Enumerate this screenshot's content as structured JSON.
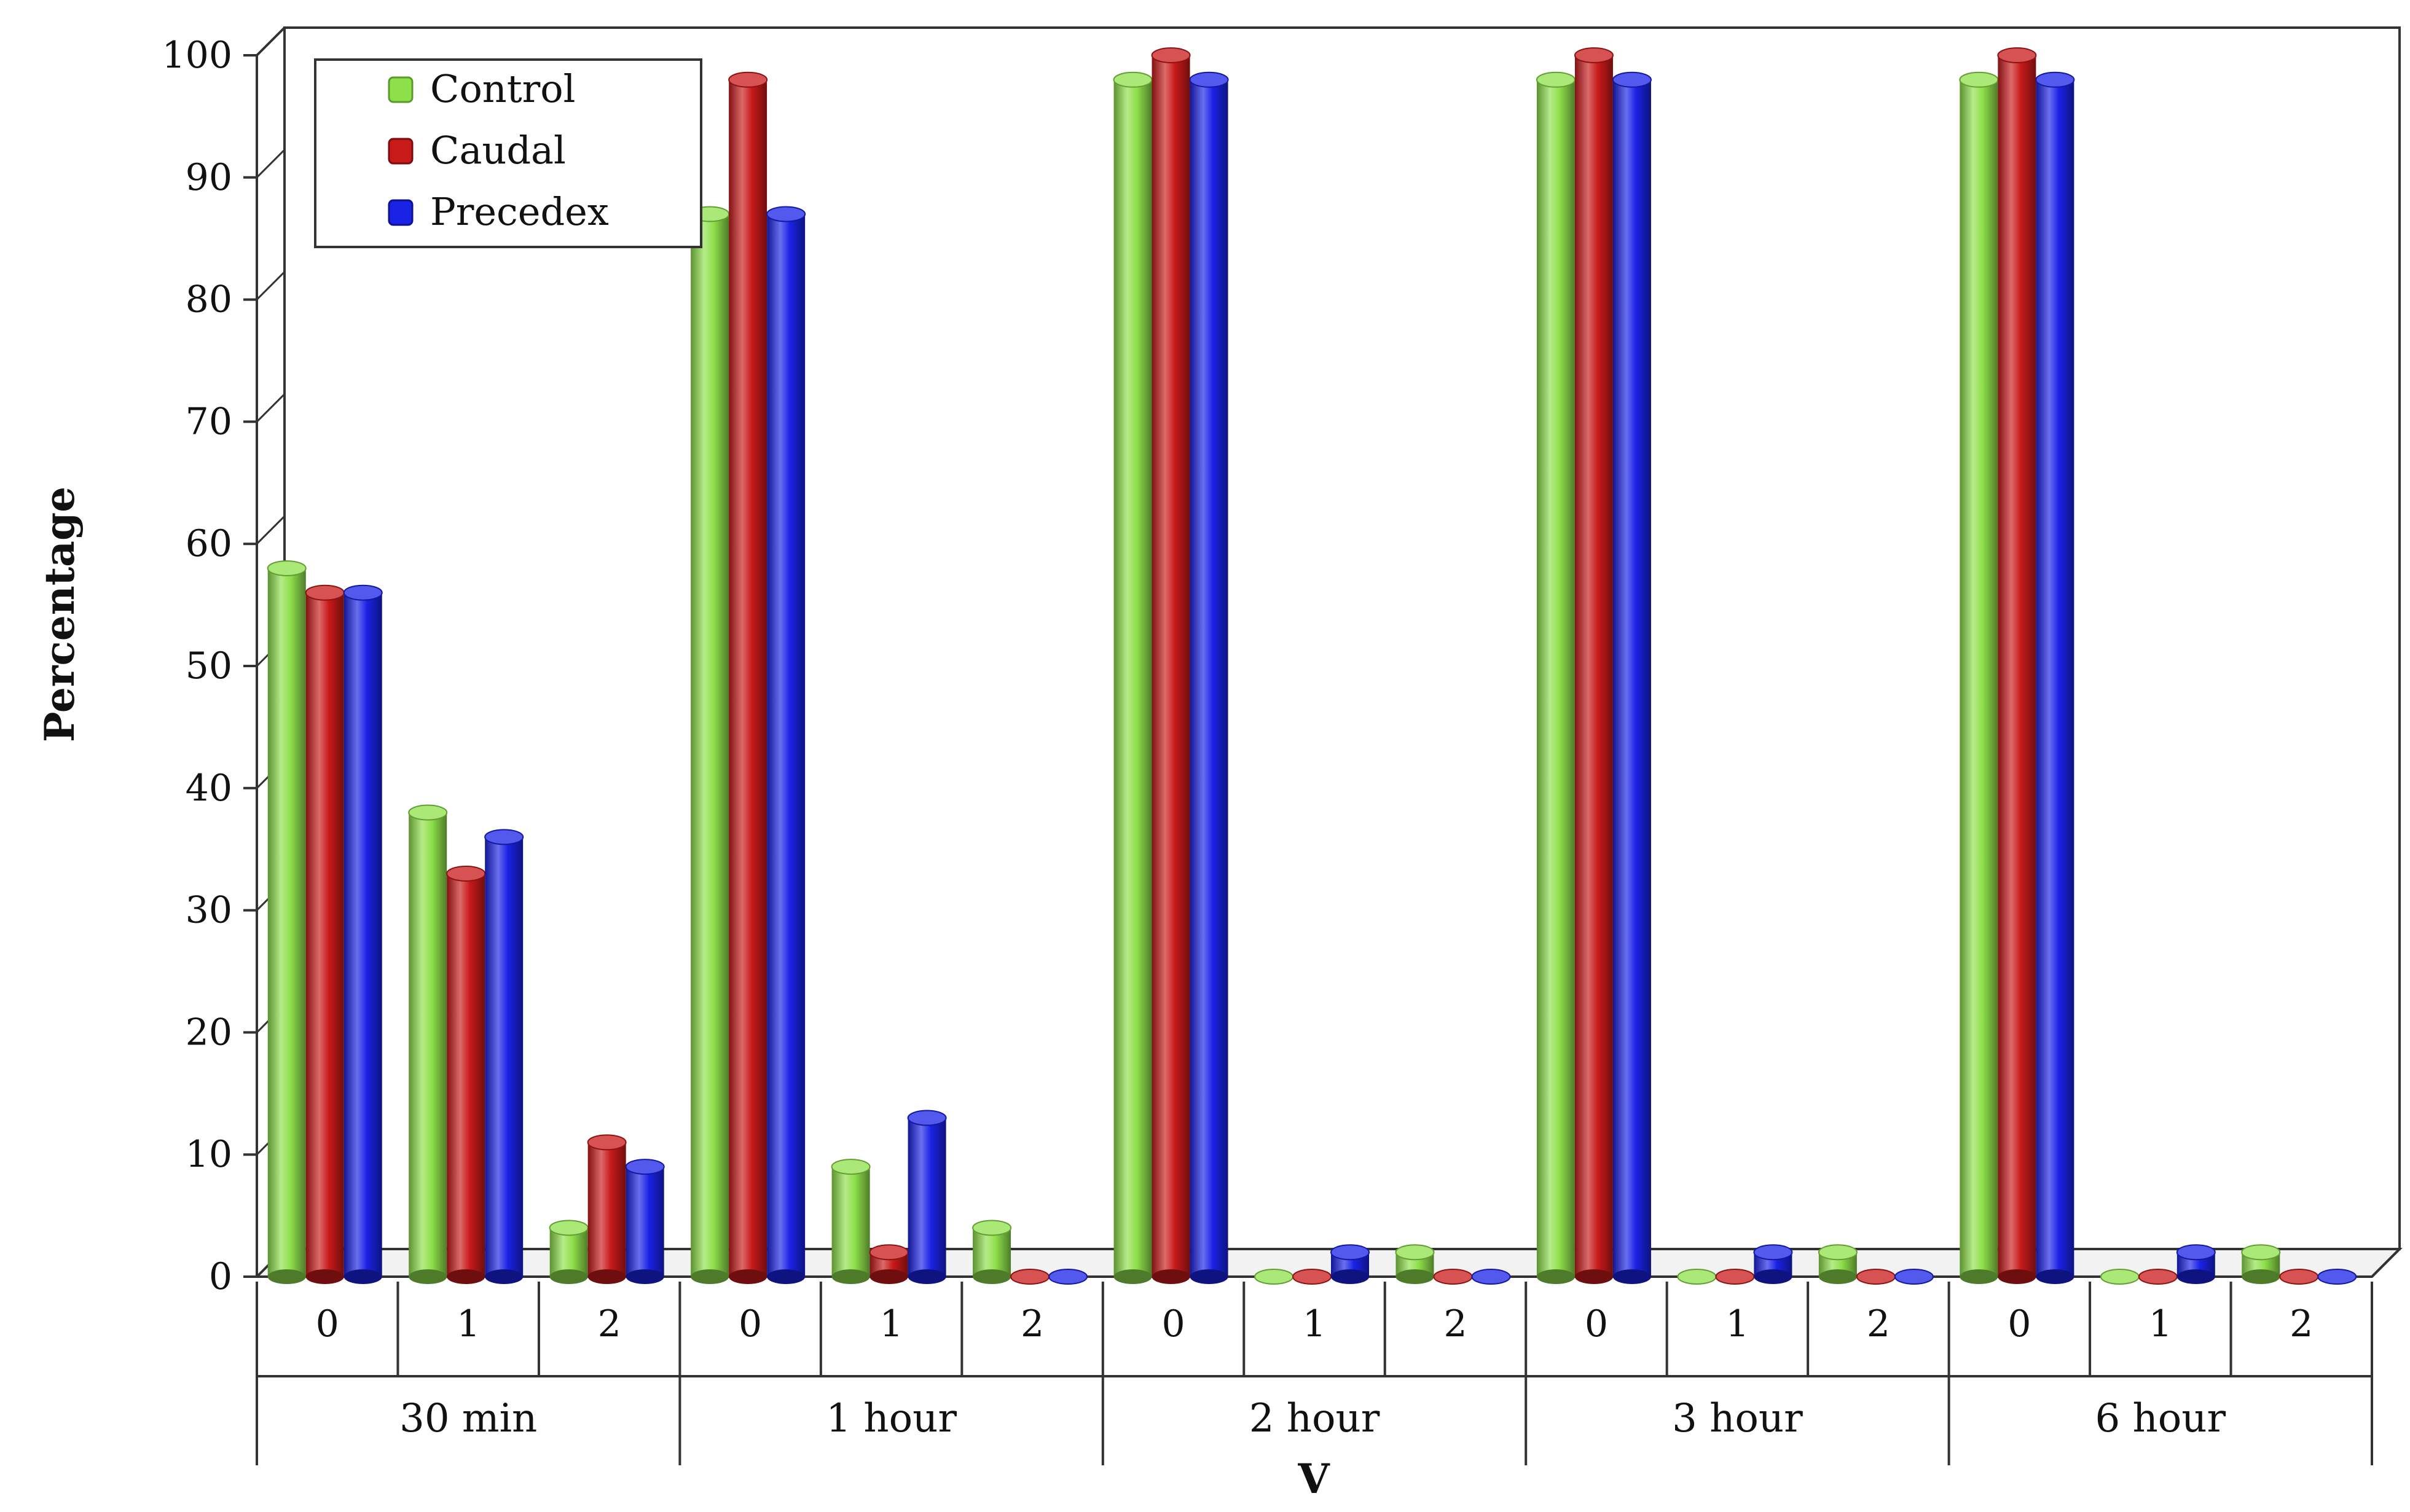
{
  "chart_data": {
    "type": "bar",
    "title": "",
    "xlabel": "V",
    "ylabel": "Percentage",
    "ylim": [
      0,
      100
    ],
    "yticks": [
      0,
      10,
      20,
      30,
      40,
      50,
      60,
      70,
      80,
      90,
      100
    ],
    "grid": false,
    "legend_position": "top-left",
    "groups": [
      {
        "label": "30 min",
        "categories": [
          "0",
          "1",
          "2"
        ]
      },
      {
        "label": "1 hour",
        "categories": [
          "0",
          "1",
          "2"
        ]
      },
      {
        "label": "2 hour",
        "categories": [
          "0",
          "1",
          "2"
        ]
      },
      {
        "label": "3 hour",
        "categories": [
          "0",
          "1",
          "2"
        ]
      },
      {
        "label": "6 hour",
        "categories": [
          "0",
          "1",
          "2"
        ]
      }
    ],
    "series": [
      {
        "name": "Control",
        "color": "#8ee04a",
        "values": [
          58,
          38,
          4,
          87,
          9,
          4,
          98,
          0,
          2,
          98,
          0,
          2,
          98,
          0,
          2
        ]
      },
      {
        "name": "Caudal",
        "color": "#c91a1a",
        "values": [
          56,
          33,
          11,
          98,
          2,
          0,
          100,
          0,
          0,
          100,
          0,
          0,
          100,
          0,
          0
        ]
      },
      {
        "name": "Precedex",
        "color": "#1a22e6",
        "values": [
          56,
          36,
          9,
          87,
          13,
          0,
          98,
          2,
          0,
          98,
          2,
          0,
          98,
          2,
          0
        ]
      }
    ]
  }
}
